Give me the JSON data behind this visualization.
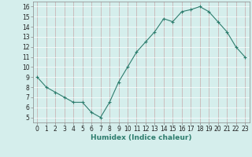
{
  "x": [
    0,
    1,
    2,
    3,
    4,
    5,
    6,
    7,
    8,
    9,
    10,
    11,
    12,
    13,
    14,
    15,
    16,
    17,
    18,
    19,
    20,
    21,
    22,
    23
  ],
  "y": [
    9,
    8,
    7.5,
    7,
    6.5,
    6.5,
    5.5,
    5,
    6.5,
    8.5,
    10,
    11.5,
    12.5,
    13.5,
    14.8,
    14.5,
    15.5,
    15.7,
    16,
    15.5,
    14.5,
    13.5,
    12,
    11
  ],
  "line_color": "#2e7d6e",
  "marker": "+",
  "marker_size": 3,
  "marker_linewidth": 0.8,
  "background_color": "#d5eeec",
  "grid_color_x": "#c8aaaa",
  "grid_color_y": "#ffffff",
  "xlabel": "Humidex (Indice chaleur)",
  "ylim": [
    4.5,
    16.5
  ],
  "xlim": [
    -0.5,
    23.5
  ],
  "yticks": [
    5,
    6,
    7,
    8,
    9,
    10,
    11,
    12,
    13,
    14,
    15,
    16
  ],
  "xticks": [
    0,
    1,
    2,
    3,
    4,
    5,
    6,
    7,
    8,
    9,
    10,
    11,
    12,
    13,
    14,
    15,
    16,
    17,
    18,
    19,
    20,
    21,
    22,
    23
  ],
  "tick_fontsize": 5.5,
  "xlabel_fontsize": 6.5,
  "line_width": 0.8,
  "spine_color": "#888888"
}
